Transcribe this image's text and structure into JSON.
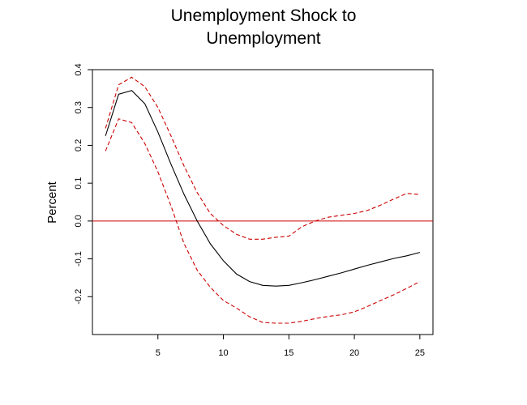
{
  "chart_data": {
    "type": "line",
    "title_lines": [
      "Unemployment Shock to",
      "Unemployment"
    ],
    "xlabel": "",
    "ylabel": "Percent",
    "xlim": [
      0,
      26
    ],
    "ylim": [
      -0.3,
      0.4
    ],
    "x_ticks": [
      5,
      10,
      15,
      20,
      25
    ],
    "x_tick_labels": [
      "5",
      "10",
      "15",
      "20",
      "25"
    ],
    "y_ticks": [
      -0.2,
      -0.1,
      0.0,
      0.1,
      0.2,
      0.3,
      0.4
    ],
    "y_tick_labels": [
      "-0.2",
      "-0.1",
      "0.0",
      "0.1",
      "0.2",
      "0.3",
      "0.4"
    ],
    "grid": false,
    "reference_line": {
      "y": 0.0,
      "color": "#cc0000"
    },
    "x": [
      1,
      2,
      3,
      4,
      5,
      6,
      7,
      8,
      9,
      10,
      11,
      12,
      13,
      14,
      15,
      16,
      17,
      18,
      19,
      20,
      21,
      22,
      23,
      24,
      25
    ],
    "series": [
      {
        "role": "response",
        "color": "#000000",
        "dash": "solid",
        "values": [
          0.225,
          0.335,
          0.345,
          0.31,
          0.235,
          0.15,
          0.07,
          0.0,
          -0.06,
          -0.105,
          -0.14,
          -0.16,
          -0.17,
          -0.172,
          -0.17,
          -0.163,
          -0.155,
          -0.146,
          -0.137,
          -0.127,
          -0.117,
          -0.108,
          -0.099,
          -0.092,
          -0.083
        ]
      },
      {
        "role": "upper-band",
        "color": "#cc0000",
        "dash": "dashed",
        "values": [
          0.245,
          0.36,
          0.38,
          0.355,
          0.3,
          0.225,
          0.145,
          0.075,
          0.02,
          -0.012,
          -0.035,
          -0.048,
          -0.048,
          -0.043,
          -0.04,
          -0.015,
          0.0,
          0.01,
          0.015,
          0.02,
          0.028,
          0.042,
          0.058,
          0.073,
          0.07
        ]
      },
      {
        "role": "lower-band",
        "color": "#cc0000",
        "dash": "dashed",
        "values": [
          0.185,
          0.27,
          0.26,
          0.205,
          0.13,
          0.04,
          -0.06,
          -0.13,
          -0.175,
          -0.21,
          -0.23,
          -0.253,
          -0.268,
          -0.27,
          -0.27,
          -0.265,
          -0.258,
          -0.252,
          -0.248,
          -0.24,
          -0.226,
          -0.21,
          -0.195,
          -0.178,
          -0.16
        ]
      }
    ]
  }
}
